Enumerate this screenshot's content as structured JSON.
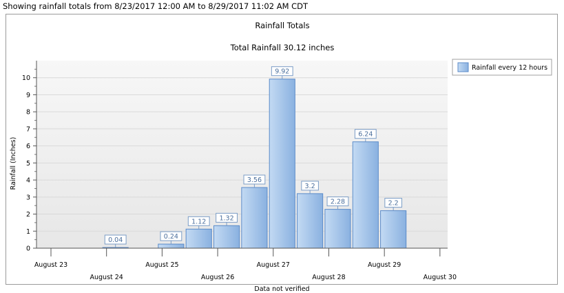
{
  "header": {
    "text": "Showing rainfall totals from 8/23/2017 12:00 AM to 8/29/2017 11:02 AM CDT"
  },
  "footer": {
    "text": "Data not verified"
  },
  "colors": {
    "bar_light": "#c3daf3",
    "bar_dark": "#8ab1e0",
    "bar_stroke": "#5b8bc9",
    "plot_bg": "#f2f2f2",
    "label_text": "#4a6e9c"
  },
  "chart_data": {
    "type": "bar",
    "title": "Rainfall Totals",
    "subtitle": "Total Rainfall 30.12 inches",
    "ylabel": "Rainfall (Inches)",
    "xlabel": "",
    "ylim": [
      0,
      11
    ],
    "yticks": [
      0,
      1,
      2,
      3,
      4,
      5,
      6,
      7,
      8,
      9,
      10
    ],
    "grid": true,
    "legend_position": "top-right",
    "x_ticks": [
      "August 23",
      "August 24",
      "August 25",
      "August 26",
      "August 27",
      "August 28",
      "August 29",
      "August 30"
    ],
    "series": [
      {
        "name": "Rainfall every 12 hours",
        "points": [
          {
            "x": "2017-08-24 00:00",
            "y": 0.04,
            "label": "0.04"
          },
          {
            "x": "2017-08-25 00:00",
            "y": 0.24,
            "label": "0.24"
          },
          {
            "x": "2017-08-25 12:00",
            "y": 1.12,
            "label": "1.12"
          },
          {
            "x": "2017-08-26 00:00",
            "y": 1.32,
            "label": "1.32"
          },
          {
            "x": "2017-08-26 12:00",
            "y": 3.56,
            "label": "3.56"
          },
          {
            "x": "2017-08-27 00:00",
            "y": 9.92,
            "label": "9.92"
          },
          {
            "x": "2017-08-27 12:00",
            "y": 3.2,
            "label": "3.2"
          },
          {
            "x": "2017-08-28 00:00",
            "y": 2.28,
            "label": "2.28"
          },
          {
            "x": "2017-08-28 12:00",
            "y": 6.24,
            "label": "6.24"
          },
          {
            "x": "2017-08-29 00:00",
            "y": 2.2,
            "label": "2.2"
          }
        ]
      }
    ]
  }
}
